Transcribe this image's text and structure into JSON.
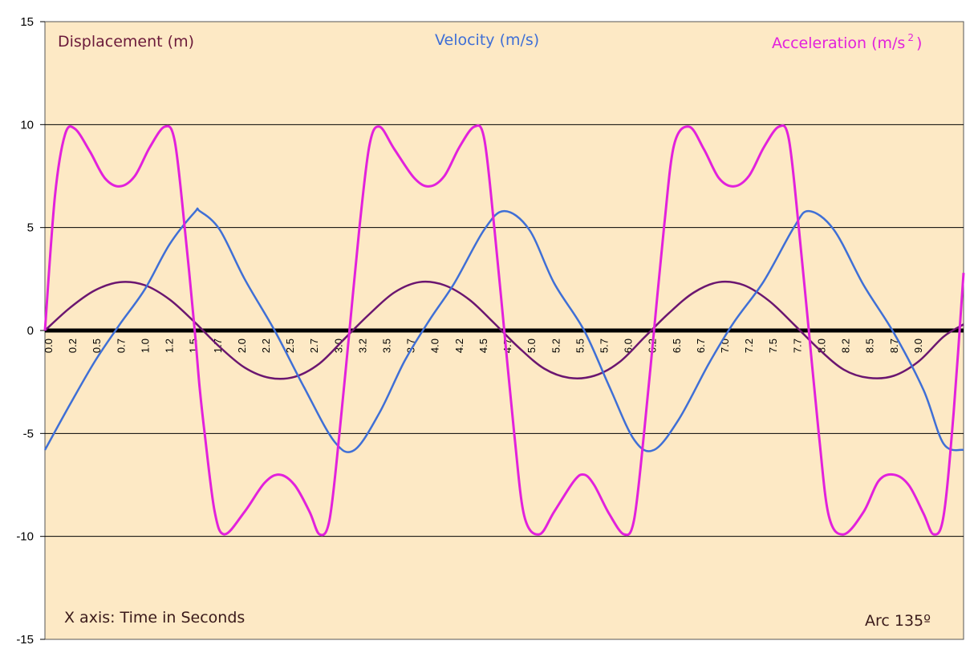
{
  "chart_data": {
    "type": "line",
    "legend": {
      "displacement_label": "Displacement (m)",
      "velocity_label": "Velocity (m/s)",
      "acceleration_label_main": "Acceleration (m/s",
      "acceleration_label_sup": "2",
      "acceleration_label_end": ")"
    },
    "x_axis_note": "X axis: Time in Seconds",
    "arc_note": "Arc  135º",
    "ylim": [
      -15,
      15
    ],
    "y_ticks": [
      15,
      10,
      5,
      0,
      -5,
      -10,
      -15
    ],
    "y_gridlines": [
      10,
      5,
      0,
      -5,
      -10
    ],
    "x_range": [
      0.0,
      9.2
    ],
    "x_tick_labels": [
      "0.0",
      "0.2",
      "0.5",
      "0.7",
      "1.0",
      "1.2",
      "1.5",
      "1.7",
      "2.0",
      "2.2",
      "2.5",
      "2.7",
      "3.0",
      "3.2",
      "3.5",
      "3.7",
      "4.0",
      "4.2",
      "4.5",
      "4.7",
      "5.0",
      "5.2",
      "5.5",
      "5.7",
      "6.0",
      "6.2",
      "6.5",
      "6.7",
      "7.0",
      "7.2",
      "7.5",
      "7.7",
      "8.0",
      "8.2",
      "8.5",
      "8.7",
      "9.0"
    ],
    "colors": {
      "plot_background": "#fde9c5",
      "displacement": "#6b1670",
      "velocity": "#3f6fd6",
      "acceleration": "#e221dc",
      "zero_line": "#000000",
      "grid": "#000000",
      "displacement_text": "#6b1a3a"
    },
    "series": [
      {
        "name": "Displacement (m)",
        "x": [
          0.0,
          0.25,
          0.5,
          0.75,
          1.0,
          1.25,
          1.5,
          1.75,
          2.0,
          2.25,
          2.5,
          2.75,
          3.0,
          3.25,
          3.5,
          3.75,
          4.0,
          4.25,
          4.5,
          4.75,
          5.0,
          5.25,
          5.5,
          5.75,
          6.0,
          6.25,
          6.5,
          6.75,
          7.0,
          7.25,
          7.5,
          7.75,
          8.0,
          8.25,
          8.5,
          8.75,
          9.0,
          9.2
        ],
        "values": [
          0.0,
          1.1,
          1.95,
          2.35,
          2.2,
          1.5,
          0.4,
          -0.8,
          -1.8,
          -2.3,
          -2.25,
          -1.6,
          -0.4,
          0.8,
          1.85,
          2.35,
          2.2,
          1.5,
          0.35,
          -0.85,
          -1.85,
          -2.3,
          -2.2,
          -1.55,
          -0.35,
          0.85,
          1.85,
          2.35,
          2.2,
          1.45,
          0.3,
          -0.9,
          -1.9,
          -2.3,
          -2.2,
          -1.5,
          -0.3,
          0.3
        ]
      },
      {
        "name": "Velocity (m/s)",
        "x": [
          0.0,
          0.25,
          0.5,
          0.75,
          1.0,
          1.25,
          1.5,
          1.55,
          1.75,
          2.0,
          2.3,
          2.6,
          2.9,
          3.1,
          3.35,
          3.6,
          3.85,
          4.1,
          4.4,
          4.6,
          4.85,
          5.1,
          5.4,
          5.65,
          5.9,
          6.1,
          6.35,
          6.65,
          6.9,
          7.2,
          7.5,
          7.65,
          7.9,
          8.2,
          8.5,
          8.8,
          9.0,
          9.2
        ],
        "values": [
          -5.8,
          -3.6,
          -1.5,
          0.3,
          2.0,
          4.2,
          5.75,
          5.8,
          4.9,
          2.5,
          0.0,
          -2.8,
          -5.4,
          -5.8,
          -4.0,
          -1.5,
          0.5,
          2.3,
          4.9,
          5.8,
          4.9,
          2.3,
          0.0,
          -2.7,
          -5.3,
          -5.8,
          -4.3,
          -1.6,
          0.4,
          2.4,
          5.0,
          5.8,
          4.9,
          2.2,
          -0.1,
          -2.9,
          -5.5,
          -5.8
        ]
      },
      {
        "name": "Acceleration (m/s2)",
        "x": [
          0.0,
          0.1,
          0.2,
          0.3,
          0.45,
          0.6,
          0.75,
          0.9,
          1.05,
          1.2,
          1.3,
          1.4,
          1.5,
          1.55,
          1.6,
          1.7,
          1.8,
          2.0,
          2.2,
          2.35,
          2.5,
          2.65,
          2.75,
          2.85,
          2.95,
          3.05,
          3.15,
          3.25,
          3.35,
          3.5,
          3.7,
          3.85,
          4.0,
          4.15,
          4.3,
          4.4,
          4.5,
          4.6,
          4.7,
          4.8,
          4.95,
          5.1,
          5.3,
          5.4,
          5.5,
          5.65,
          5.8,
          5.9,
          6.0,
          6.1,
          6.2,
          6.3,
          6.45,
          6.6,
          6.75,
          6.9,
          7.05,
          7.2,
          7.35,
          7.45,
          7.55,
          7.65,
          7.75,
          7.85,
          8.0,
          8.2,
          8.35,
          8.5,
          8.65,
          8.8,
          8.9,
          9.0,
          9.1,
          9.2
        ],
        "values": [
          0.0,
          6.5,
          9.5,
          9.8,
          8.7,
          7.4,
          7.0,
          7.5,
          8.9,
          9.9,
          9.2,
          5.0,
          0.0,
          -2.8,
          -5.0,
          -8.8,
          -9.9,
          -8.8,
          -7.4,
          -7.0,
          -7.5,
          -8.8,
          -9.9,
          -9.2,
          -5.0,
          0.0,
          5.0,
          9.0,
          9.9,
          8.8,
          7.4,
          7.0,
          7.5,
          8.9,
          9.9,
          9.3,
          5.0,
          0.0,
          -5.0,
          -9.0,
          -9.9,
          -8.8,
          -7.3,
          -7.0,
          -7.5,
          -8.9,
          -9.9,
          -9.2,
          -5.0,
          0.0,
          5.0,
          9.0,
          9.9,
          8.8,
          7.4,
          7.0,
          7.5,
          8.9,
          9.9,
          9.3,
          5.0,
          0.0,
          -5.0,
          -9.0,
          -9.9,
          -8.8,
          -7.3,
          -7.0,
          -7.5,
          -8.9,
          -9.9,
          -9.0,
          -4.0,
          2.8
        ]
      }
    ]
  }
}
